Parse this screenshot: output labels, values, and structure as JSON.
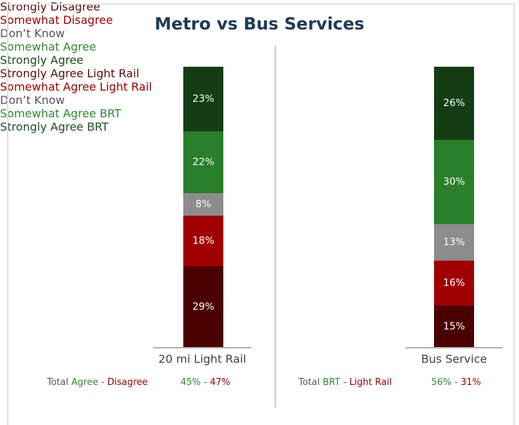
{
  "title": "Metro vs Bus Services",
  "chart_data": [
    {
      "type": "stacked_bar",
      "x_label": "20 mi Light Rail",
      "series": [
        {
          "name": "Strongly\nDisagree",
          "color": "#4a0000",
          "label_color": "#5a0a0a",
          "values": [
            29
          ],
          "value_labels": [
            "29%"
          ]
        },
        {
          "name": "Somewhat\nDisagree",
          "color": "#a00000",
          "label_color": "#a00000",
          "values": [
            18
          ],
          "value_labels": [
            "18%"
          ]
        },
        {
          "name": "Don’t Know",
          "color": "#8c8c8c",
          "label_color": "#555555",
          "values": [
            8
          ],
          "value_labels": [
            "8%"
          ]
        },
        {
          "name": "Somewhat\nAgree",
          "color": "#2a7f2a",
          "label_color": "#2e8b2e",
          "values": [
            22
          ],
          "value_labels": [
            "22%"
          ]
        },
        {
          "name": "Strongly\nAgree",
          "color": "#143d14",
          "label_color": "#1e4d1e",
          "values": [
            23
          ],
          "value_labels": [
            "23%"
          ]
        }
      ],
      "totals": {
        "label": "Total",
        "agree_label": "Agree",
        "disagree_label": "Disagree",
        "separator": "-",
        "values": [
          45,
          47
        ],
        "value_labels": [
          "45%",
          "47%"
        ]
      }
    },
    {
      "type": "stacked_bar",
      "x_label": "Bus Service",
      "series": [
        {
          "name": "Strongly Agree\nLight Rail",
          "color": "#4a0000",
          "label_color": "#5a0a0a",
          "values": [
            15
          ],
          "value_labels": [
            "15%"
          ]
        },
        {
          "name": "Somewhat Agree\nLight Rail",
          "color": "#a00000",
          "label_color": "#a00000",
          "values": [
            16
          ],
          "value_labels": [
            "16%"
          ]
        },
        {
          "name": "Don’t Know",
          "color": "#8c8c8c",
          "label_color": "#555555",
          "values": [
            13
          ],
          "value_labels": [
            "13%"
          ]
        },
        {
          "name": "Somewhat Agree\nBRT",
          "color": "#2a7f2a",
          "label_color": "#2e8b2e",
          "values": [
            30
          ],
          "value_labels": [
            "30%"
          ]
        },
        {
          "name": "Strongly Agree\nBRT",
          "color": "#143d14",
          "label_color": "#1e4d1e",
          "values": [
            26
          ],
          "value_labels": [
            "26%"
          ]
        }
      ],
      "totals": {
        "label": "Total",
        "agree_label": "BRT",
        "disagree_label": "Light Rail",
        "separator": "-",
        "values": [
          56,
          31
        ],
        "value_labels": [
          "56%",
          "31%"
        ]
      }
    }
  ]
}
